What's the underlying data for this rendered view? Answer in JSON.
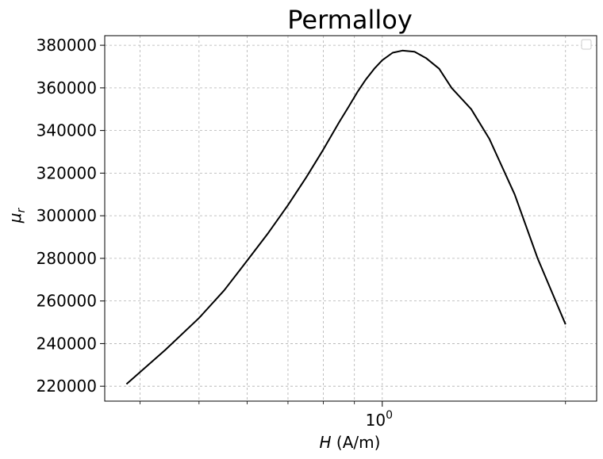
{
  "chart_data": {
    "type": "line",
    "title": "Permalloy",
    "xlabel_symbol": "H",
    "xlabel_unit": " (A/m)",
    "ylabel_symbol": "μ",
    "ylabel_subscript": "r",
    "x_scale": "log",
    "xlim": [
      0.35,
      2.25
    ],
    "ylim": [
      213000,
      384500
    ],
    "x_major_ticks": [
      {
        "value": 1,
        "base": "10",
        "exponent": "0"
      }
    ],
    "x_minor_ticks": [
      0.4,
      0.5,
      0.6,
      0.7,
      0.8,
      0.9,
      2
    ],
    "y_ticks": [
      220000,
      240000,
      260000,
      280000,
      300000,
      320000,
      340000,
      360000,
      380000
    ],
    "y_tick_labels": [
      "220000",
      "240000",
      "260000",
      "280000",
      "300000",
      "320000",
      "340000",
      "360000",
      "380000"
    ],
    "grid": true,
    "legend": {
      "placement": "top-right",
      "entries": []
    },
    "line_color": "#000000",
    "series": [
      {
        "x": [
          0.38,
          0.44,
          0.5,
          0.55,
          0.6,
          0.65,
          0.7,
          0.75,
          0.8,
          0.85,
          0.88,
          0.91,
          0.94,
          0.97,
          1.0,
          1.04,
          1.08,
          1.13,
          1.18,
          1.24,
          1.3,
          1.4,
          1.5,
          1.65,
          1.8,
          2.0
        ],
        "y": [
          221000,
          237000,
          252000,
          265000,
          279000,
          292000,
          305000,
          318000,
          331000,
          344000,
          351000,
          358000,
          364000,
          369000,
          373000,
          376500,
          377500,
          377000,
          374000,
          369000,
          360000,
          350000,
          336000,
          310000,
          280000,
          249000
        ]
      }
    ]
  }
}
